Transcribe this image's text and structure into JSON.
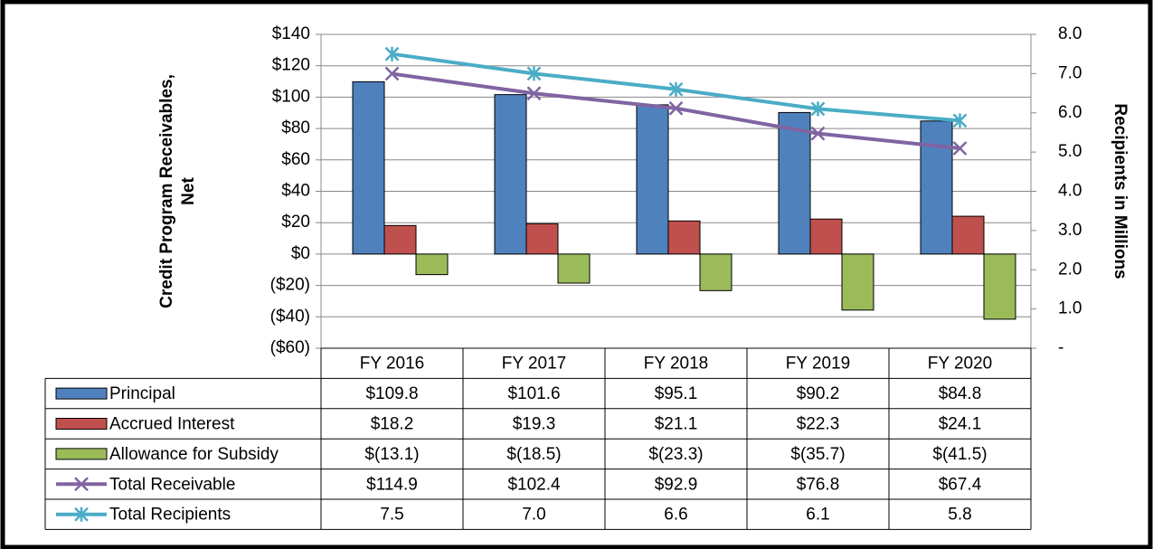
{
  "chart_data": {
    "type": "bar",
    "categories": [
      "FY 2016",
      "FY 2017",
      "FY 2018",
      "FY 2019",
      "FY 2020"
    ],
    "ylabel_lines": [
      "Credit Program Receivables,",
      "Net"
    ],
    "y2label": "Recipients in Millions",
    "ylim": [
      -60,
      140
    ],
    "yticks": [
      {
        "value": -60,
        "label": "($60)"
      },
      {
        "value": -40,
        "label": "($40)"
      },
      {
        "value": -20,
        "label": "($20)"
      },
      {
        "value": 0,
        "label": "$0"
      },
      {
        "value": 20,
        "label": "$20"
      },
      {
        "value": 40,
        "label": "$40"
      },
      {
        "value": 60,
        "label": "$60"
      },
      {
        "value": 80,
        "label": "$80"
      },
      {
        "value": 100,
        "label": "$100"
      },
      {
        "value": 120,
        "label": "$120"
      },
      {
        "value": 140,
        "label": "$140"
      }
    ],
    "y2lim": [
      0,
      8
    ],
    "y2ticks": [
      {
        "value": 0,
        "label": "-"
      },
      {
        "value": 1,
        "label": "1.0"
      },
      {
        "value": 2,
        "label": "2.0"
      },
      {
        "value": 3,
        "label": "3.0"
      },
      {
        "value": 4,
        "label": "4.0"
      },
      {
        "value": 5,
        "label": "5.0"
      },
      {
        "value": 6,
        "label": "6.0"
      },
      {
        "value": 7,
        "label": "7.0"
      },
      {
        "value": 8,
        "label": "8.0"
      }
    ],
    "grid": true,
    "series": [
      {
        "name": "Principal",
        "type": "bar",
        "color": "#4f81bd",
        "values": [
          109.8,
          101.6,
          95.1,
          90.2,
          84.8
        ],
        "value_labels": [
          "$109.8",
          "$101.6",
          "$95.1",
          "$90.2",
          "$84.8"
        ]
      },
      {
        "name": "Accrued Interest",
        "type": "bar",
        "color": "#c0504d",
        "values": [
          18.2,
          19.3,
          21.1,
          22.3,
          24.1
        ],
        "value_labels": [
          "$18.2",
          "$19.3",
          "$21.1",
          "$22.3",
          "$24.1"
        ]
      },
      {
        "name": "Allowance for Subsidy",
        "type": "bar",
        "color": "#9bbb59",
        "values": [
          -13.1,
          -18.5,
          -23.3,
          -35.7,
          -41.5
        ],
        "value_labels": [
          "$(13.1)",
          "$(18.5)",
          "$(23.3)",
          "$(35.7)",
          "$(41.5)"
        ]
      },
      {
        "name": "Total Receivable",
        "type": "line",
        "marker": "x",
        "color": "#8064a2",
        "values": [
          114.9,
          102.4,
          92.9,
          76.8,
          67.4
        ],
        "value_labels": [
          "$114.9",
          "$102.4",
          "$92.9",
          "$76.8",
          "$67.4"
        ]
      },
      {
        "name": "Total Recipients",
        "type": "line",
        "marker": "star",
        "axis": "y2",
        "color": "#4bacc6",
        "values": [
          7.5,
          7.0,
          6.6,
          6.1,
          5.8
        ],
        "value_labels": [
          "7.5",
          "7.0",
          "6.6",
          "6.1",
          "5.8"
        ]
      }
    ]
  }
}
